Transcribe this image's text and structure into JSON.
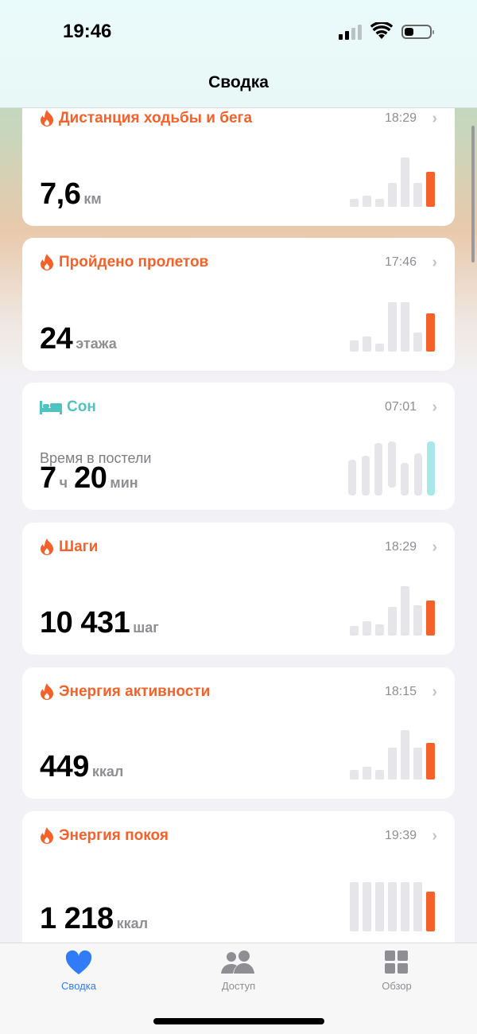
{
  "status_bar": {
    "time": "19:46",
    "signal_bars": 2,
    "battery_level": 0.3
  },
  "header": {
    "title": "Сводка"
  },
  "colors": {
    "activity": "#f4612a",
    "sleep": "#4fc3c0",
    "tab_active": "#2f7cf6",
    "tab_inactive": "#8e8e93",
    "bar_inactive": "#e5e5ea",
    "sleep_bar": "#a7e8e8"
  },
  "cards": [
    {
      "icon": "flame-icon",
      "title": "Дистанция ходьбы и бега",
      "time": "18:29",
      "value": "7,6",
      "unit": "км",
      "bars": [
        0.16,
        0.23,
        0.16,
        0.48,
        1,
        0.48,
        0.71
      ]
    },
    {
      "icon": "flame-icon",
      "title": "Пройдено пролетов",
      "time": "17:46",
      "value": "24",
      "unit": "этажа",
      "bars": [
        0.23,
        0.3,
        0.16,
        1,
        1,
        0.39,
        0.77
      ]
    },
    {
      "icon": "bed-icon",
      "title": "Сон",
      "time": "07:01",
      "subtitle": "Время в постели",
      "value_h": "7",
      "unit_h": "ч",
      "value_m": "20",
      "unit_m": "мин",
      "ranges": [
        [
          0,
          0.68
        ],
        [
          0,
          0.76
        ],
        [
          0,
          1.0
        ],
        [
          0.15,
          1.03
        ],
        [
          0,
          0.62
        ],
        [
          0,
          0.8
        ],
        [
          0,
          1.03
        ]
      ]
    },
    {
      "icon": "flame-icon",
      "title": "Шаги",
      "time": "18:29",
      "value": "10 431",
      "unit": "шаг",
      "bars": [
        0.19,
        0.29,
        0.23,
        0.58,
        1,
        0.61,
        0.71
      ]
    },
    {
      "icon": "flame-icon",
      "title": "Энергия активности",
      "time": "18:15",
      "value": "449",
      "unit": "ккал",
      "bars": [
        0.19,
        0.26,
        0.19,
        0.65,
        1,
        0.65,
        0.74
      ]
    },
    {
      "icon": "flame-icon",
      "title": "Энергия покоя",
      "time": "19:39",
      "value": "1 218",
      "unit": "ккал",
      "bars": [
        1,
        1,
        1,
        1,
        1,
        1,
        0.81
      ]
    }
  ],
  "tabs": [
    {
      "label": "Сводка",
      "icon": "heart-icon",
      "active": true
    },
    {
      "label": "Доступ",
      "icon": "people-icon",
      "active": false
    },
    {
      "label": "Обзор",
      "icon": "grid-icon",
      "active": false
    }
  ]
}
